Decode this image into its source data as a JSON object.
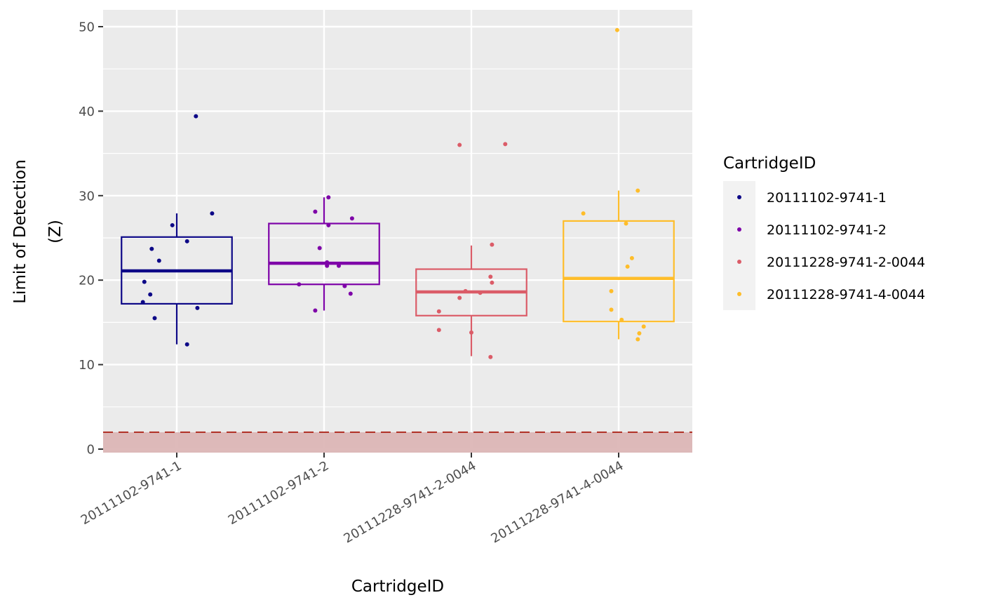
{
  "chart_data": {
    "type": "boxplot",
    "xlabel": "CartridgeID",
    "ylabel_lines": [
      "Limit of Detection",
      "(Z)"
    ],
    "ylim": [
      -0.3,
      52
    ],
    "yticks": [
      0,
      10,
      20,
      30,
      40,
      50
    ],
    "y_minor_ticks": [
      5,
      15,
      25,
      35,
      45
    ],
    "grid": true,
    "legend": {
      "title": "CartridgeID",
      "position": "right",
      "entries": [
        "20111102-9741-1",
        "20111102-9741-2",
        "20111228-9741-2-0044",
        "20111228-9741-4-0044"
      ]
    },
    "threshold": {
      "value": 2,
      "style": "dashed",
      "color": "#b2352b",
      "band": [
        0,
        2
      ],
      "band_color": "#dcb6b6"
    },
    "categories": [
      "20111102-9741-1",
      "20111102-9741-2",
      "20111228-9741-2-0044",
      "20111228-9741-4-0044"
    ],
    "series": [
      {
        "name": "20111102-9741-1",
        "color": "#0d0887",
        "box": {
          "whisker_low": 12.4,
          "q1": 17.2,
          "median": 21.1,
          "q3": 25.1,
          "whisker_high": 27.9
        },
        "points": [
          {
            "x": -0.23,
            "y": 17.4
          },
          {
            "x": -0.15,
            "y": 15.5
          },
          {
            "x": -0.22,
            "y": 19.8
          },
          {
            "x": -0.18,
            "y": 18.3
          },
          {
            "x": -0.17,
            "y": 23.7
          },
          {
            "x": -0.12,
            "y": 22.3
          },
          {
            "x": -0.03,
            "y": 26.5
          },
          {
            "x": 0.07,
            "y": 24.6
          },
          {
            "x": 0.14,
            "y": 16.7
          },
          {
            "x": 0.24,
            "y": 27.9
          },
          {
            "x": 0.07,
            "y": 12.4
          },
          {
            "x": 0.13,
            "y": 39.4
          }
        ]
      },
      {
        "name": "20111102-9741-2",
        "color": "#7e03a8",
        "box": {
          "whisker_low": 16.4,
          "q1": 19.5,
          "median": 22.0,
          "q3": 26.7,
          "whisker_high": 29.8
        },
        "points": [
          {
            "x": -0.17,
            "y": 19.5
          },
          {
            "x": -0.06,
            "y": 16.4
          },
          {
            "x": -0.06,
            "y": 28.1
          },
          {
            "x": -0.03,
            "y": 23.8
          },
          {
            "x": 0.02,
            "y": 22.1
          },
          {
            "x": 0.02,
            "y": 21.7
          },
          {
            "x": 0.03,
            "y": 29.8
          },
          {
            "x": 0.03,
            "y": 26.5
          },
          {
            "x": 0.1,
            "y": 21.7
          },
          {
            "x": 0.14,
            "y": 19.3
          },
          {
            "x": 0.18,
            "y": 18.4
          },
          {
            "x": 0.19,
            "y": 27.3
          }
        ]
      },
      {
        "name": "20111228-9741-2-0044",
        "color": "#db5c68",
        "box": {
          "whisker_low": 11.0,
          "q1": 15.8,
          "median": 18.6,
          "q3": 21.3,
          "whisker_high": 24.1
        },
        "points": [
          {
            "x": -0.22,
            "y": 16.3
          },
          {
            "x": -0.22,
            "y": 14.1
          },
          {
            "x": -0.08,
            "y": 17.9
          },
          {
            "x": -0.04,
            "y": 18.7
          },
          {
            "x": 0.0,
            "y": 13.8
          },
          {
            "x": 0.06,
            "y": 18.5
          },
          {
            "x": 0.13,
            "y": 20.4
          },
          {
            "x": 0.14,
            "y": 24.2
          },
          {
            "x": 0.14,
            "y": 19.7
          },
          {
            "x": 0.13,
            "y": 10.9
          },
          {
            "x": -0.08,
            "y": 36.0
          },
          {
            "x": 0.23,
            "y": 36.1
          }
        ]
      },
      {
        "name": "20111228-9741-4-0044",
        "color": "#febd2a",
        "box": {
          "whisker_low": 13.0,
          "q1": 15.1,
          "median": 20.2,
          "q3": 27.0,
          "whisker_high": 30.6
        },
        "points": [
          {
            "x": -0.24,
            "y": 27.9
          },
          {
            "x": -0.05,
            "y": 18.7
          },
          {
            "x": -0.05,
            "y": 16.5
          },
          {
            "x": 0.02,
            "y": 15.3
          },
          {
            "x": 0.05,
            "y": 26.7
          },
          {
            "x": 0.06,
            "y": 21.6
          },
          {
            "x": 0.09,
            "y": 22.6
          },
          {
            "x": 0.13,
            "y": 13.0
          },
          {
            "x": 0.14,
            "y": 13.7
          },
          {
            "x": 0.17,
            "y": 14.5
          },
          {
            "x": 0.13,
            "y": 30.6
          },
          {
            "x": -0.01,
            "y": 49.6
          }
        ]
      }
    ]
  }
}
